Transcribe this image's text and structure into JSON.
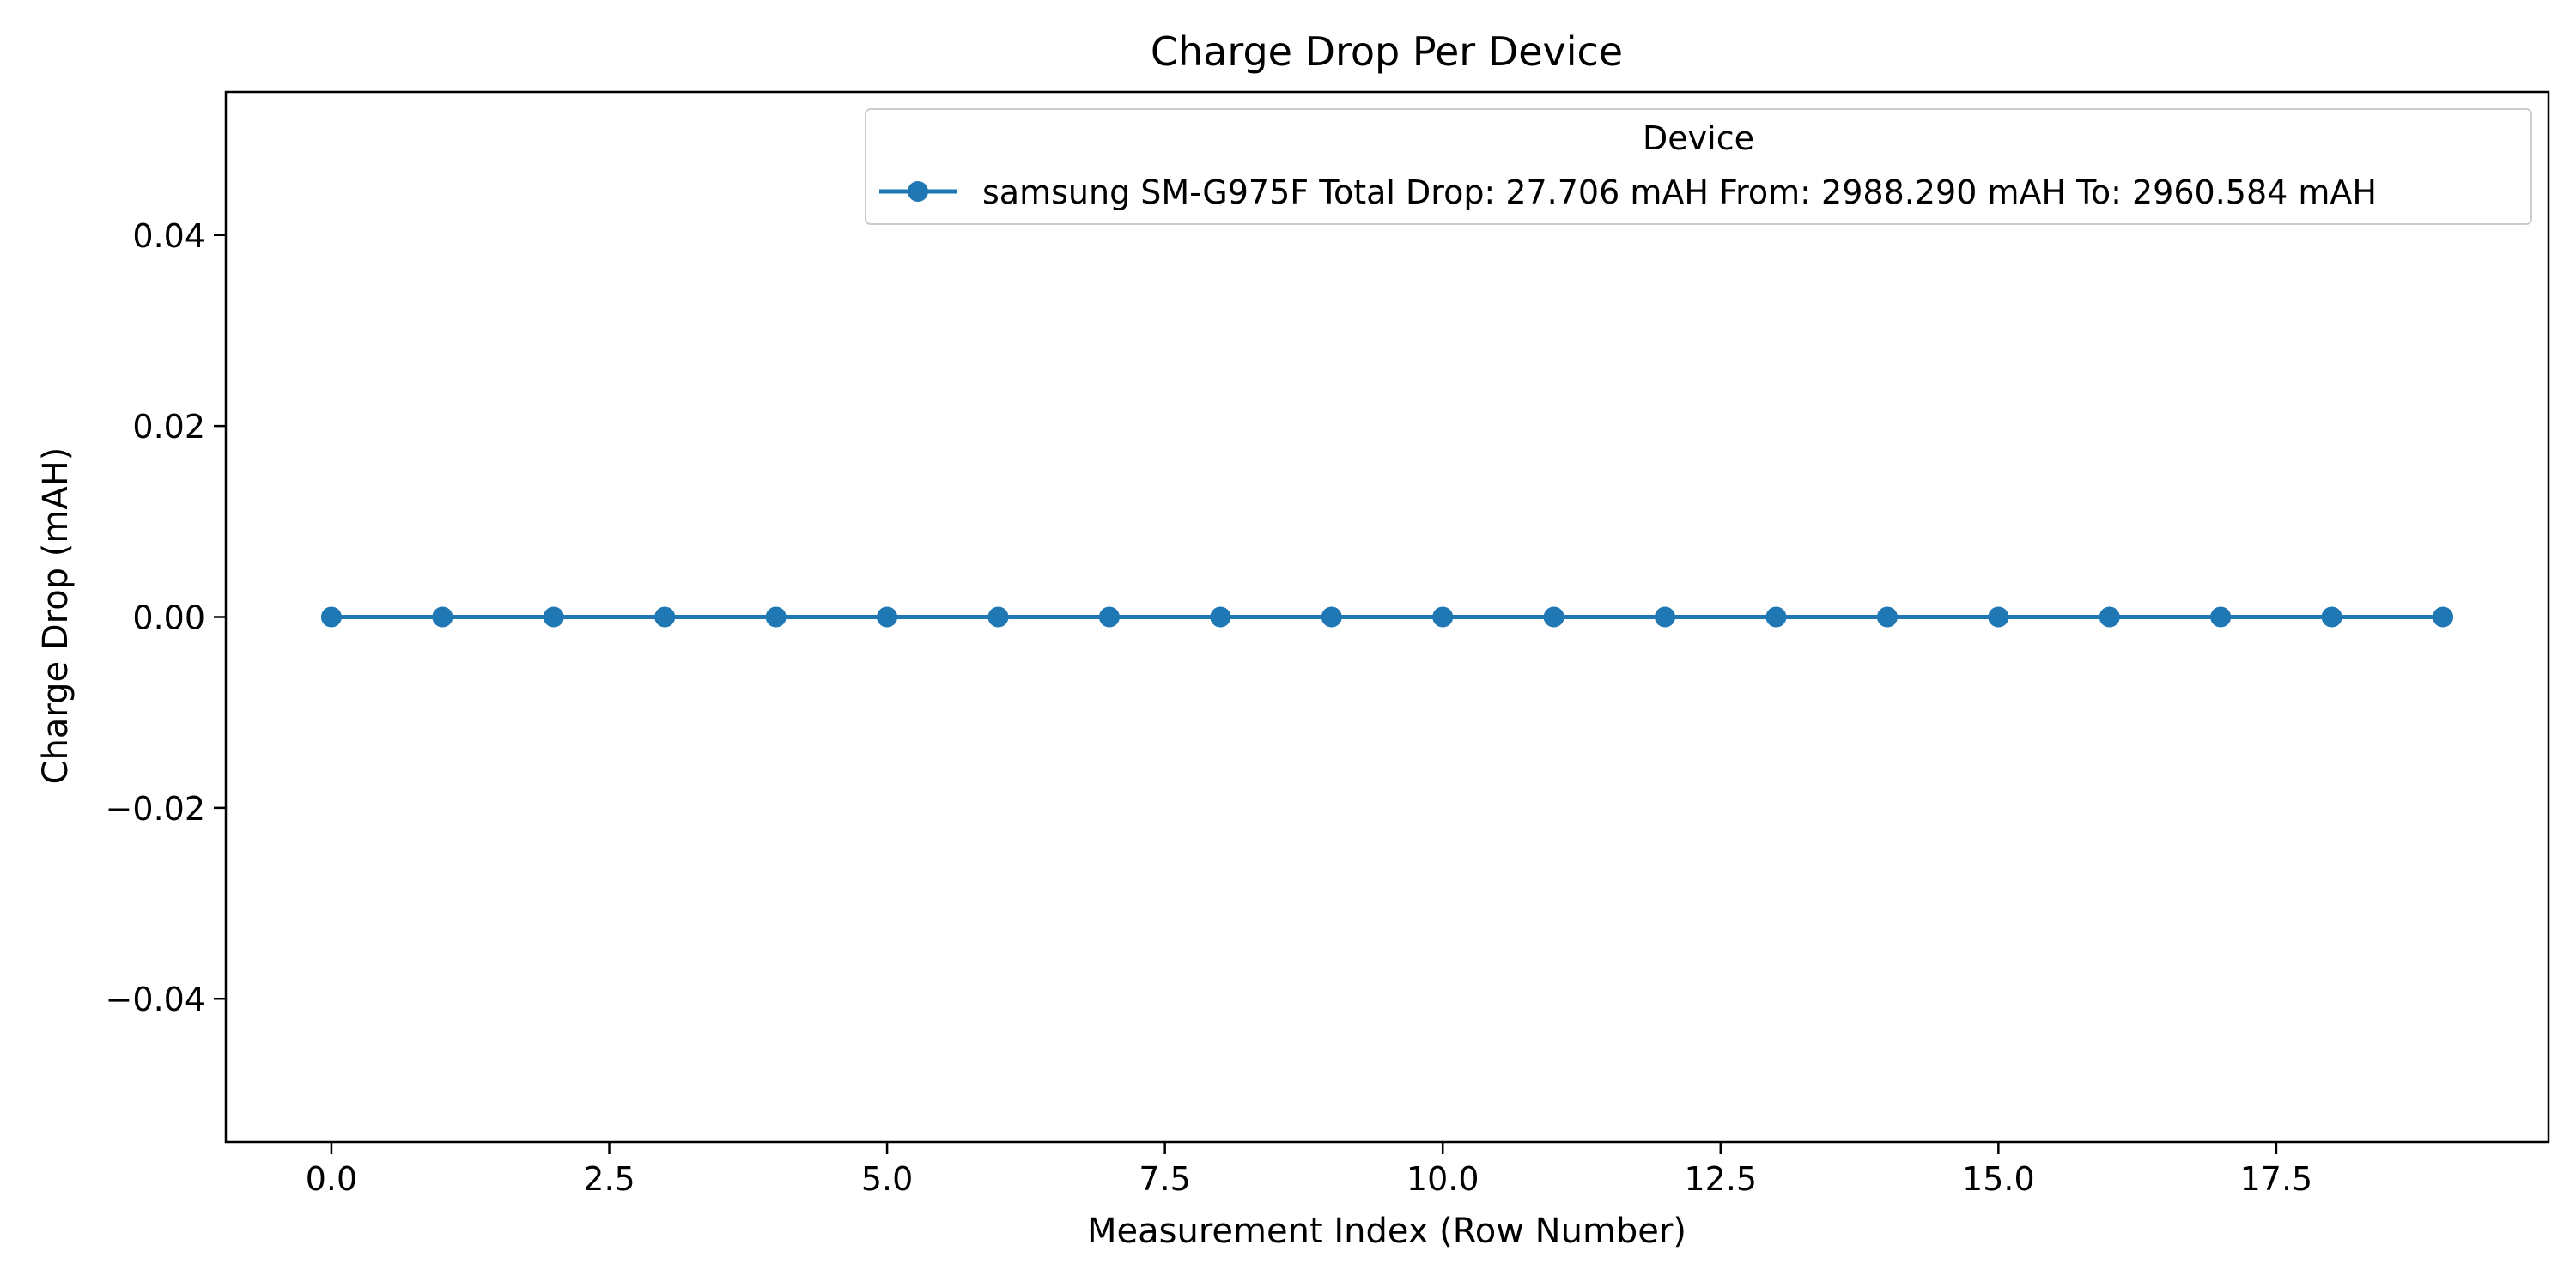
{
  "chart_data": {
    "type": "line",
    "title": "Charge Drop Per Device",
    "xlabel": "Measurement Index (Row Number)",
    "ylabel": "Charge Drop (mAH)",
    "xlim": [
      -0.95,
      19.95
    ],
    "ylim": [
      -0.055,
      0.055
    ],
    "x_ticks": [
      0.0,
      2.5,
      5.0,
      7.5,
      10.0,
      12.5,
      15.0,
      17.5
    ],
    "x_tick_labels": [
      "0.0",
      "2.5",
      "5.0",
      "7.5",
      "10.0",
      "12.5",
      "15.0",
      "17.5"
    ],
    "y_ticks": [
      -0.04,
      -0.02,
      0.0,
      0.02,
      0.04
    ],
    "y_tick_labels": [
      "−0.04",
      "−0.02",
      "0.00",
      "0.02",
      "0.04"
    ],
    "grid": false,
    "legend": {
      "title": "Device",
      "position": "top-right"
    },
    "series": [
      {
        "name": "samsung SM-G975F Total Drop: 27.706 mAH From: 2988.290 mAH To: 2960.584 mAH",
        "color": "#1f77b4",
        "marker": "circle",
        "x": [
          0,
          1,
          2,
          3,
          4,
          5,
          6,
          7,
          8,
          9,
          10,
          11,
          12,
          13,
          14,
          15,
          16,
          17,
          18,
          19
        ],
        "y": [
          0,
          0,
          0,
          0,
          0,
          0,
          0,
          0,
          0,
          0,
          0,
          0,
          0,
          0,
          0,
          0,
          0,
          0,
          0,
          0
        ]
      }
    ]
  }
}
